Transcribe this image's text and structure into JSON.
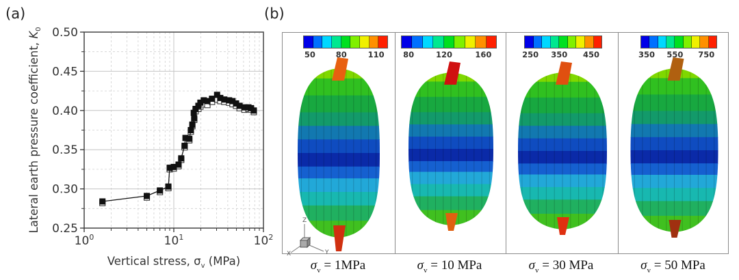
{
  "panel_labels": {
    "a": "(a)",
    "b": "(b)"
  },
  "chart_data": {
    "type": "scatter",
    "title": "",
    "xlabel": "Vertical stress, σv (MPa)",
    "xlabel_parts": {
      "pre": "Vertical stress, σ",
      "sub": "v",
      "post": " (MPa)"
    },
    "ylabel": "Lateral earth pressure coefficient, K0",
    "ylabel_parts": {
      "pre": "Lateral earth pressure coefficient, ",
      "var": "K",
      "sub": "0"
    },
    "xscale": "log",
    "xlim": [
      1,
      100
    ],
    "ylim": [
      0.25,
      0.5
    ],
    "xticks": [
      {
        "value": 1,
        "base": "10",
        "exp": "0"
      },
      {
        "value": 10,
        "base": "10",
        "exp": "1"
      },
      {
        "value": 100,
        "base": "10",
        "exp": "2"
      }
    ],
    "yticks": [
      "0.25",
      "0.30",
      "0.35",
      "0.40",
      "0.45",
      "0.50"
    ],
    "grid": true,
    "legend": null,
    "series": [
      {
        "name": "filled squares",
        "marker": "square-filled",
        "line": true,
        "x": [
          1.6,
          5.0,
          7.0,
          8.7,
          9.0,
          10.0,
          11.3,
          12.1,
          13.2,
          13.5,
          14.9,
          15.5,
          16.1,
          16.9,
          16.7,
          17.5,
          18.8,
          19.8,
          21.6,
          23.7,
          26.7,
          30.4,
          33.0,
          36.6,
          41.4,
          45.2,
          49.5,
          54.2,
          61.4,
          68.0,
          72.7,
          78.1
        ],
        "y": [
          0.284,
          0.291,
          0.298,
          0.303,
          0.327,
          0.328,
          0.331,
          0.339,
          0.355,
          0.365,
          0.364,
          0.375,
          0.382,
          0.39,
          0.397,
          0.402,
          0.406,
          0.41,
          0.413,
          0.412,
          0.415,
          0.42,
          0.416,
          0.414,
          0.413,
          0.412,
          0.409,
          0.406,
          0.404,
          0.404,
          0.403,
          0.4
        ]
      },
      {
        "name": "open squares",
        "marker": "square-open",
        "line": false,
        "x": [
          1.6,
          5.0,
          7.0,
          8.7,
          9.0,
          10.0,
          11.3,
          12.1,
          13.2,
          14.9,
          15.5,
          16.1,
          16.9,
          17.5,
          18.8,
          19.8,
          21.6,
          23.7,
          26.7,
          30.4,
          33.0,
          36.6,
          41.4,
          45.2,
          49.5,
          54.2,
          61.4,
          68.0,
          72.7,
          78.1
        ],
        "y": [
          0.282,
          0.289,
          0.296,
          0.301,
          0.325,
          0.326,
          0.329,
          0.337,
          0.353,
          0.362,
          0.373,
          0.38,
          0.388,
          0.399,
          0.402,
          0.405,
          0.408,
          0.407,
          0.411,
          0.414,
          0.412,
          0.411,
          0.41,
          0.408,
          0.406,
          0.403,
          0.401,
          0.402,
          0.401,
          0.398
        ]
      }
    ]
  },
  "panel_b": {
    "axis_triad": {
      "x": "X",
      "y": "Y",
      "z": "Z"
    },
    "colormap": [
      "#0000e8",
      "#0070ff",
      "#00d8ff",
      "#00e890",
      "#00e020",
      "#80f000",
      "#f0f000",
      "#ff9000",
      "#ff2000"
    ],
    "subpanels": [
      {
        "colorbar_ticks": [
          "50",
          "80",
          "110"
        ],
        "caption_pre": "σ",
        "caption_sub": "v",
        "caption_post": " = 1MPa"
      },
      {
        "colorbar_ticks": [
          "80",
          "120",
          "160"
        ],
        "caption_pre": "σ",
        "caption_sub": "v",
        "caption_post": " = 10 MPa"
      },
      {
        "colorbar_ticks": [
          "250",
          "350",
          "450"
        ],
        "caption_pre": "σ",
        "caption_sub": "v",
        "caption_post": " = 30 MPa"
      },
      {
        "colorbar_ticks": [
          "350",
          "550",
          "750"
        ],
        "caption_pre": "σ",
        "caption_sub": "v",
        "caption_post": " = 50 MPa"
      }
    ]
  }
}
